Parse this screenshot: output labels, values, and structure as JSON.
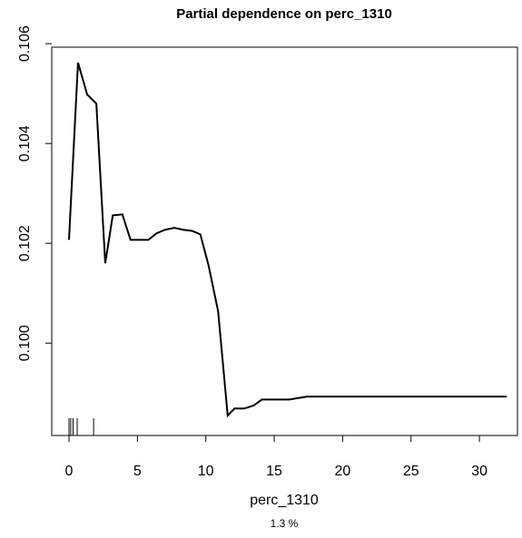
{
  "chart_data": {
    "type": "line",
    "title": "Partial dependence on perc_1310",
    "xlabel": "perc_1310",
    "subtitle": "1.3 %",
    "x": [
      0,
      0.66,
      1.33,
      2.0,
      2.65,
      3.2,
      3.9,
      4.5,
      5.8,
      6.4,
      7.0,
      7.7,
      8.4,
      9.0,
      9.6,
      10.2,
      10.9,
      11.6,
      12.1,
      12.8,
      13.5,
      14.1,
      16.1,
      17.4,
      32.0
    ],
    "series": [
      {
        "color": "#000000",
        "values": [
          0.10207,
          0.10562,
          0.10498,
          0.1048,
          0.1016,
          0.10256,
          0.10258,
          0.10207,
          0.10207,
          0.1022,
          0.10227,
          0.10231,
          0.10227,
          0.10225,
          0.10218,
          0.10156,
          0.10064,
          0.09855,
          0.09869,
          0.09869,
          0.09875,
          0.09887,
          0.09887,
          0.09893,
          0.09893
        ]
      }
    ],
    "rug": [
      0,
      0.13,
      0.3,
      0.6,
      1.8
    ],
    "xlim": [
      -1.26,
      32.78
    ],
    "ylim": [
      0.09815,
      0.10593
    ],
    "xticks": [
      0,
      5,
      10,
      15,
      20,
      25,
      30
    ],
    "yticks": [
      {
        "value": 0.1,
        "label": "0.100"
      },
      0.102,
      0.104,
      0.106
    ]
  }
}
